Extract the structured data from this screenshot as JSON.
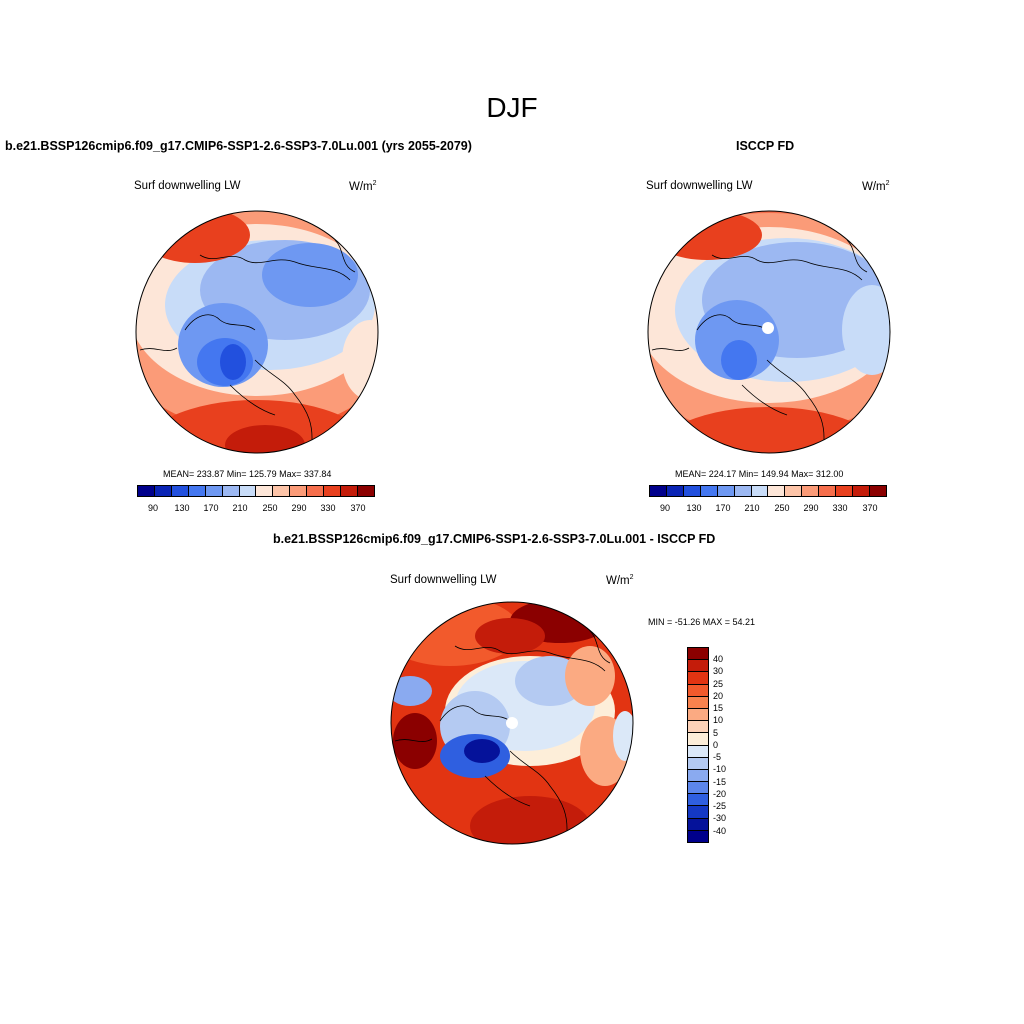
{
  "title": "DJF",
  "panels": {
    "model": {
      "title": "b.e21.BSSP126cmip6.f09_g17.CMIP6-SSP1-2.6-SSP3-7.0Lu.001 (yrs 2055-2079)",
      "variable": "Surf downwelling LW",
      "unit_base": "W/m",
      "unit_exp": "2",
      "stats": "MEAN= 233.87  Min= 125.79  Max= 337.84",
      "colorbar_ticks": [
        "90",
        "130",
        "170",
        "210",
        "250",
        "290",
        "330",
        "370"
      ]
    },
    "obs": {
      "title": "ISCCP FD",
      "variable": "Surf downwelling LW",
      "unit_base": "W/m",
      "unit_exp": "2",
      "stats": "MEAN= 224.17  Min= 149.94  Max= 312.00",
      "colorbar_ticks": [
        "90",
        "130",
        "170",
        "210",
        "250",
        "290",
        "330",
        "370"
      ]
    },
    "diff": {
      "title": "b.e21.BSSP126cmip6.f09_g17.CMIP6-SSP1-2.6-SSP3-7.0Lu.001 - ISCCP FD",
      "variable": "Surf downwelling LW",
      "unit_base": "W/m",
      "unit_exp": "2",
      "stats": "MIN = -51.26 MAX =  54.21",
      "colorbar_ticks": [
        "40",
        "30",
        "25",
        "20",
        "15",
        "10",
        "5",
        "0",
        "-5",
        "-10",
        "-15",
        "-20",
        "-25",
        "-30",
        "-40"
      ]
    }
  },
  "colors": {
    "abs_scale": [
      "#00008b",
      "#0a24b5",
      "#2250de",
      "#4477f0",
      "#6e98f2",
      "#9cb8f2",
      "#c8dcf8",
      "#fde6d8",
      "#fdc4a8",
      "#fb9b78",
      "#f66e4c",
      "#e8401e",
      "#c41c0a",
      "#8b0000"
    ],
    "diff_scale": [
      "#8b0000",
      "#c41c0a",
      "#e23412",
      "#f25a2c",
      "#f8824e",
      "#fbaa82",
      "#fdd2b8",
      "#fdeed9",
      "#dbe8f8",
      "#b4caf2",
      "#8aaaf0",
      "#5c86ec",
      "#2f5fe0",
      "#1438c4",
      "#05129a",
      "#00008b"
    ]
  },
  "map_data": {
    "projection": "north polar stereographic",
    "season": "DJF",
    "variable": "Surf downwelling LW",
    "units": "W/m2"
  }
}
